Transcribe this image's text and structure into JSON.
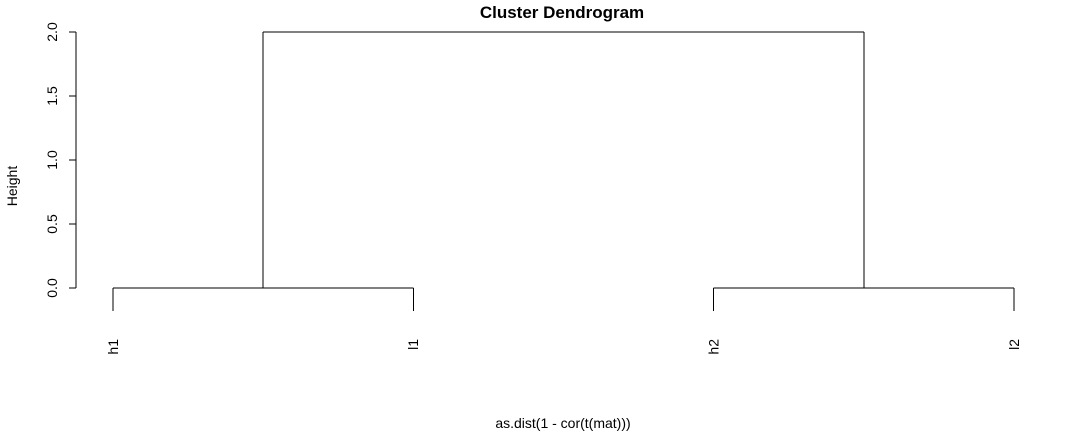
{
  "chart_data": {
    "type": "dendrogram",
    "title": "Cluster Dendrogram",
    "xlabel": "as.dist(1 - cor(t(mat)))",
    "ylabel": "Height",
    "ylim": [
      0,
      2
    ],
    "yticks": [
      0,
      0.5,
      1,
      1.5,
      2
    ],
    "ytick_labels": [
      "0.0",
      "0.5",
      "1.0",
      "1.5",
      "2.0"
    ],
    "leaves": [
      "h1",
      "l1",
      "h2",
      "l2"
    ],
    "merges": [
      {
        "left": "leaf:0",
        "right": "leaf:1",
        "height": 0.0
      },
      {
        "left": "leaf:2",
        "right": "leaf:3",
        "height": 0.0
      },
      {
        "left": "node:0",
        "right": "node:1",
        "height": 2.0
      }
    ],
    "line_color": "#000000"
  }
}
